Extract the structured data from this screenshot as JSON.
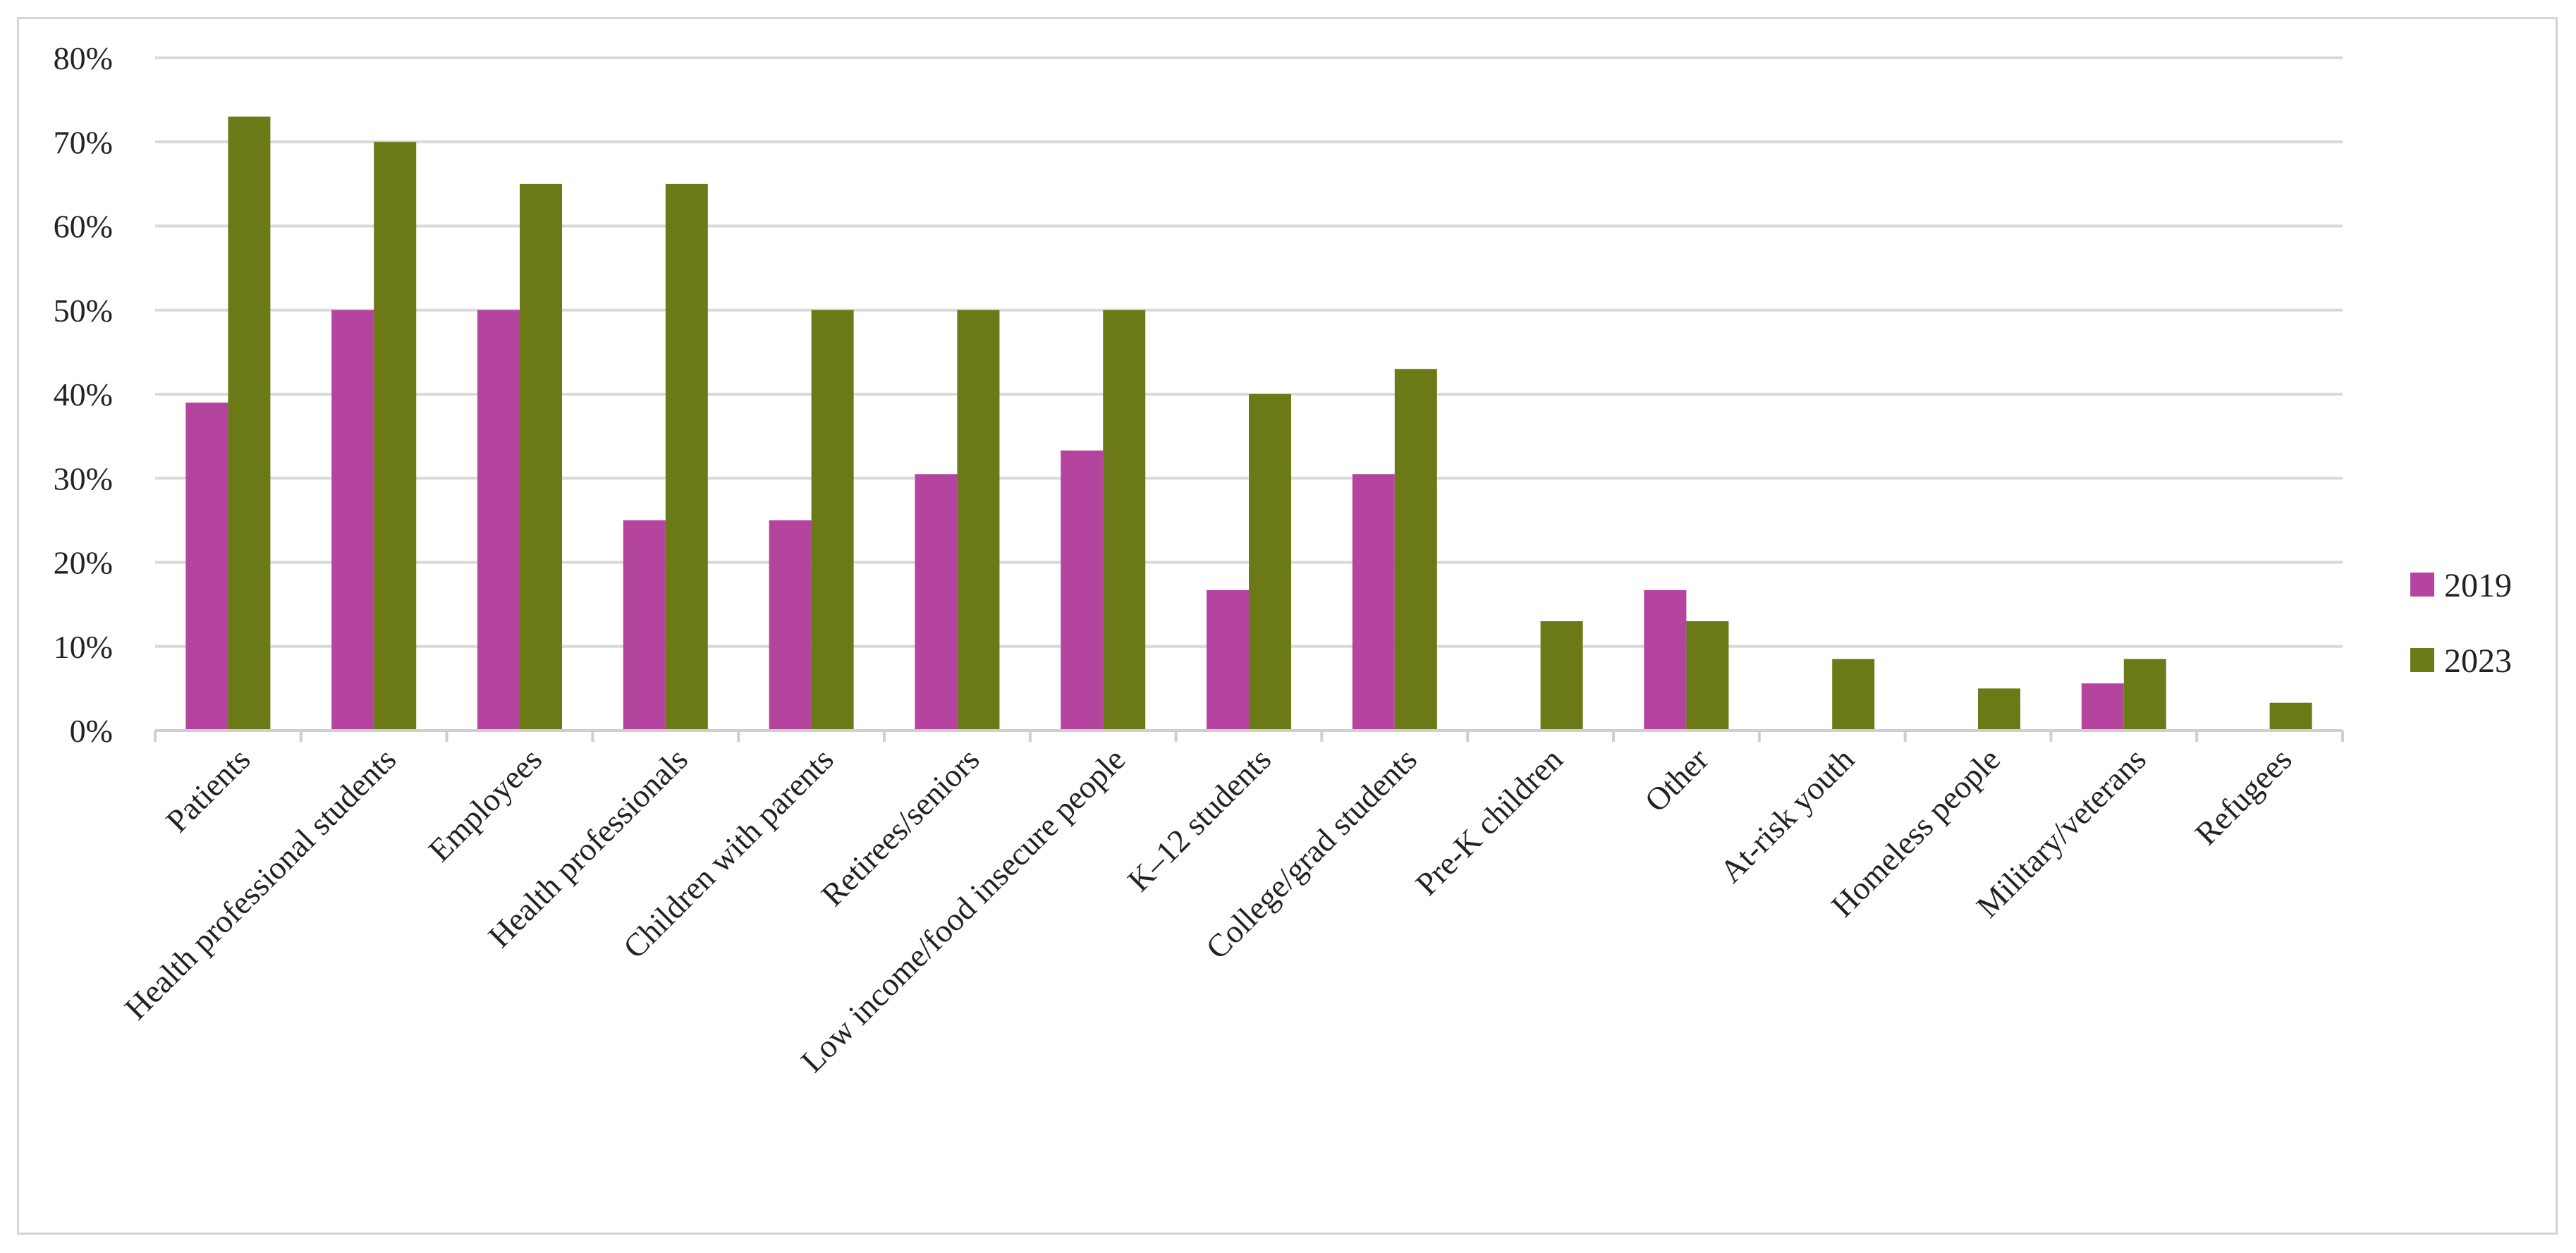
{
  "chart_data": {
    "type": "bar",
    "categories": [
      "Patients",
      "Health professional students",
      "Employees",
      "Health professionals",
      "Children with parents",
      "Retirees/seniors",
      "Low income/food insecure people",
      "K–12 students",
      "College/grad students",
      "Pre-K children",
      "Other",
      "At-risk youth",
      "Homeless people",
      "Military/veterans",
      "Refugees"
    ],
    "series": [
      {
        "name": "2019",
        "color": "#b5449e",
        "values": [
          39,
          50,
          50,
          25,
          25,
          30.5,
          33.3,
          16.7,
          30.5,
          0,
          16.7,
          0,
          0,
          5.6,
          0
        ]
      },
      {
        "name": "2023",
        "color": "#6b7a16",
        "values": [
          73,
          70,
          65,
          65,
          50,
          50,
          50,
          40,
          43,
          13,
          13,
          8.5,
          5,
          8.5,
          3.3
        ]
      }
    ],
    "y_ticks": [
      "0%",
      "10%",
      "20%",
      "30%",
      "40%",
      "50%",
      "60%",
      "70%",
      "80%"
    ],
    "ylim": [
      0,
      80
    ],
    "grid": true,
    "legend_position": "right",
    "title": "",
    "xlabel": "",
    "ylabel": ""
  }
}
